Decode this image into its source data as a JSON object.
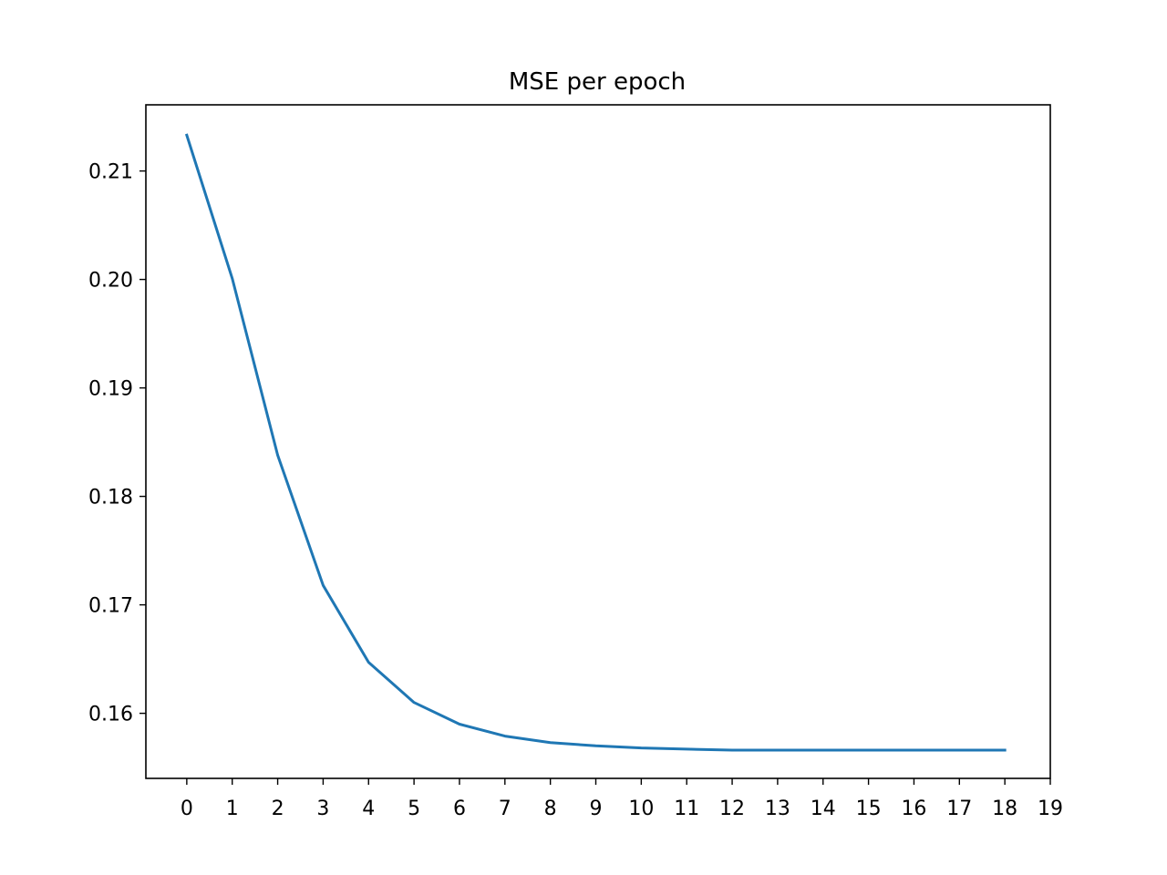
{
  "chart_data": {
    "type": "line",
    "title": "MSE per epoch",
    "xlabel": "",
    "ylabel": "",
    "xlim": [
      -0.9,
      19.0
    ],
    "ylim": [
      0.154,
      0.2161
    ],
    "xticks": [
      "0",
      "1",
      "2",
      "3",
      "4",
      "5",
      "6",
      "7",
      "8",
      "9",
      "10",
      "11",
      "12",
      "13",
      "14",
      "15",
      "16",
      "17",
      "18",
      "19"
    ],
    "xtick_values": [
      0,
      1,
      2,
      3,
      4,
      5,
      6,
      7,
      8,
      9,
      10,
      11,
      12,
      13,
      14,
      15,
      16,
      17,
      18,
      19
    ],
    "yticks": [
      "0.16",
      "0.17",
      "0.18",
      "0.19",
      "0.20",
      "0.21"
    ],
    "ytick_values": [
      0.16,
      0.17,
      0.18,
      0.19,
      0.2,
      0.21
    ],
    "grid": false,
    "series": [
      {
        "color": "#1f77b4",
        "x": [
          0,
          1,
          2,
          3,
          4,
          5,
          6,
          7,
          8,
          9,
          10,
          11,
          12,
          13,
          14,
          15,
          16,
          17,
          18
        ],
        "y": [
          0.2133,
          0.2001,
          0.1838,
          0.1718,
          0.1647,
          0.161,
          0.159,
          0.1579,
          0.1573,
          0.157,
          0.1568,
          0.1567,
          0.1566,
          0.1566,
          0.1566,
          0.1566,
          0.1566,
          0.1566,
          0.1566
        ]
      }
    ]
  }
}
